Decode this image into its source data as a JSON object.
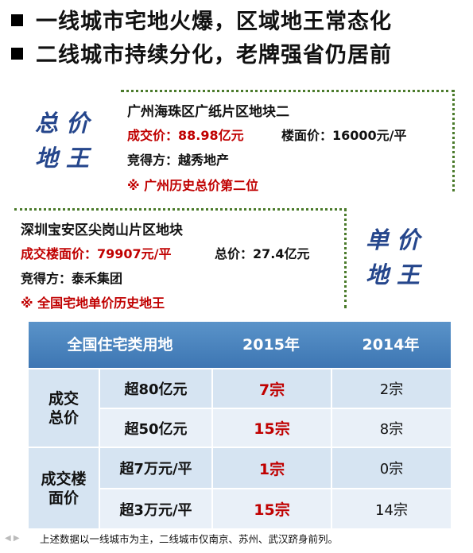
{
  "headlines": [
    "一线城市宅地火爆，区域地王常态化",
    "二线城市持续分化，老牌强省仍居前"
  ],
  "total_price_king": {
    "label_line1": "总价",
    "label_line2": "地王",
    "title": "广州海珠区广纸片区地块二",
    "price_label": "成交价：88.98亿元",
    "floor_price": "楼面价：16000元/平",
    "buyer": "竞得方：越秀地产",
    "note": "※ 广州历史总价第二位"
  },
  "unit_price_king": {
    "label_line1": "单价",
    "label_line2": "地王",
    "title": "深圳宝安区尖岗山片区地块",
    "price_label": "成交楼面价：79907元/平",
    "total_price": "总价：27.4亿元",
    "buyer": "竞得方：泰禾集团",
    "note": "※ 全国宅地单价历史地王"
  },
  "table": {
    "headers": [
      "全国住宅类用地",
      "2015年",
      "2014年"
    ],
    "groups": [
      {
        "label_line1": "成交",
        "label_line2": "总价",
        "rows": [
          {
            "criterion": "超80亿元",
            "y2015": "7宗",
            "y2014": "2宗"
          },
          {
            "criterion": "超50亿元",
            "y2015": "15宗",
            "y2014": "8宗"
          }
        ]
      },
      {
        "label_line1": "成交楼",
        "label_line2": "面价",
        "rows": [
          {
            "criterion": "超7万元/平",
            "y2015": "1宗",
            "y2014": "0宗"
          },
          {
            "criterion": "超3万元/平",
            "y2015": "15宗",
            "y2014": "14宗"
          }
        ]
      }
    ]
  },
  "footnote": "上述数据以一线城市为主，二线城市仅南京、苏州、武汉跻身前列。",
  "colors": {
    "accent_red": "#c00000",
    "label_blue": "#25468c",
    "dotted_green": "#4a7a2a",
    "table_header": "#4a85c0"
  }
}
